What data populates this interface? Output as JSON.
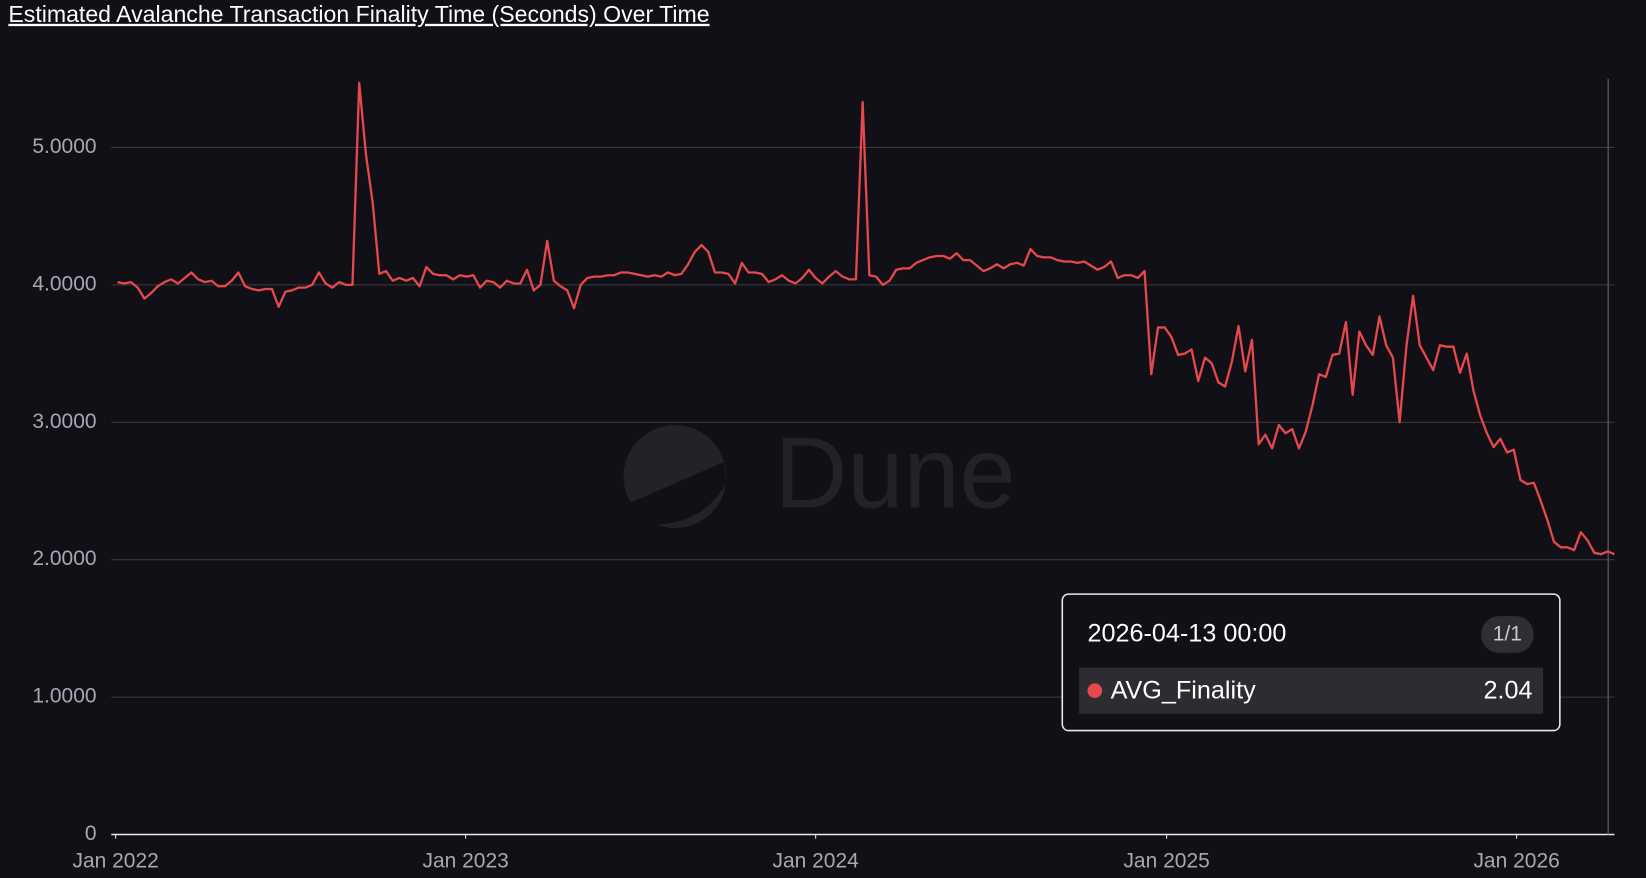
{
  "chart_data": {
    "type": "line",
    "title": "Estimated Avalanche Transaction Finality Time (Seconds) Over Time",
    "watermark": "Dune",
    "x": [
      "2022-01-03",
      "2022-01-10",
      "2022-01-17",
      "2022-01-24",
      "2022-01-31",
      "2022-02-07",
      "2022-02-14",
      "2022-02-21",
      "2022-02-28",
      "2022-03-07",
      "2022-03-14",
      "2022-03-21",
      "2022-03-28",
      "2022-04-04",
      "2022-04-11",
      "2022-04-18",
      "2022-04-25",
      "2022-05-02",
      "2022-05-09",
      "2022-05-16",
      "2022-05-23",
      "2022-05-30",
      "2022-06-06",
      "2022-06-13",
      "2022-06-20",
      "2022-06-27",
      "2022-07-04",
      "2022-07-11",
      "2022-07-18",
      "2022-07-25",
      "2022-08-01",
      "2022-08-08",
      "2022-08-15",
      "2022-08-22",
      "2022-08-29",
      "2022-09-05",
      "2022-09-12",
      "2022-09-19",
      "2022-09-26",
      "2022-10-03",
      "2022-10-10",
      "2022-10-17",
      "2022-10-24",
      "2022-10-31",
      "2022-11-07",
      "2022-11-14",
      "2022-11-21",
      "2022-11-28",
      "2022-12-05",
      "2022-12-12",
      "2022-12-19",
      "2022-12-26",
      "2023-01-02",
      "2023-01-09",
      "2023-01-16",
      "2023-01-23",
      "2023-01-30",
      "2023-02-06",
      "2023-02-13",
      "2023-02-20",
      "2023-02-27",
      "2023-03-06",
      "2023-03-13",
      "2023-03-20",
      "2023-03-27",
      "2023-04-03",
      "2023-04-10",
      "2023-04-17",
      "2023-04-24",
      "2023-05-01",
      "2023-05-08",
      "2023-05-15",
      "2023-05-22",
      "2023-05-29",
      "2023-06-05",
      "2023-06-12",
      "2023-06-19",
      "2023-06-26",
      "2023-07-03",
      "2023-07-10",
      "2023-07-17",
      "2023-07-24",
      "2023-07-31",
      "2023-08-07",
      "2023-08-14",
      "2023-08-21",
      "2023-08-28",
      "2023-09-04",
      "2023-09-11",
      "2023-09-18",
      "2023-09-25",
      "2023-10-02",
      "2023-10-09",
      "2023-10-16",
      "2023-10-23",
      "2023-10-30",
      "2023-11-06",
      "2023-11-13",
      "2023-11-20",
      "2023-11-27",
      "2023-12-04",
      "2023-12-11",
      "2023-12-18",
      "2023-12-25",
      "2024-01-01",
      "2024-01-08",
      "2024-01-15",
      "2024-01-22",
      "2024-01-29",
      "2024-02-05",
      "2024-02-12",
      "2024-02-19",
      "2024-02-26",
      "2024-03-04",
      "2024-03-11",
      "2024-03-18",
      "2024-03-25",
      "2024-04-01",
      "2024-04-08",
      "2024-04-15",
      "2024-04-22",
      "2024-04-29",
      "2024-05-06",
      "2024-05-13",
      "2024-05-20",
      "2024-05-27",
      "2024-06-03",
      "2024-06-10",
      "2024-06-17",
      "2024-06-24",
      "2024-07-01",
      "2024-07-08",
      "2024-07-15",
      "2024-07-22",
      "2024-07-29",
      "2024-08-05",
      "2024-08-12",
      "2024-08-19",
      "2024-08-26",
      "2024-09-02",
      "2024-09-09",
      "2024-09-16",
      "2024-09-23",
      "2024-09-30",
      "2024-10-07",
      "2024-10-14",
      "2024-10-21",
      "2024-10-28",
      "2024-11-04",
      "2024-11-11",
      "2024-11-18",
      "2024-11-25",
      "2024-12-02",
      "2024-12-09",
      "2024-12-16",
      "2024-12-23",
      "2024-12-30",
      "2025-01-06",
      "2025-01-13",
      "2025-01-20",
      "2025-01-27",
      "2025-02-03",
      "2025-02-10",
      "2025-02-17",
      "2025-02-24",
      "2025-03-03",
      "2025-03-10",
      "2025-03-17",
      "2025-03-24",
      "2025-03-31",
      "2025-04-07",
      "2025-04-14",
      "2025-04-21",
      "2025-04-28",
      "2025-05-05",
      "2025-05-12",
      "2025-05-19",
      "2025-05-26",
      "2025-06-02",
      "2025-06-09",
      "2025-06-16",
      "2025-06-23",
      "2025-06-30",
      "2025-07-07",
      "2025-07-14",
      "2025-07-21",
      "2025-07-28",
      "2025-08-04",
      "2025-08-11",
      "2025-08-18",
      "2025-08-25",
      "2025-09-01",
      "2025-09-08",
      "2025-09-15",
      "2025-09-22",
      "2025-09-29",
      "2025-10-06",
      "2025-10-13",
      "2025-10-20",
      "2025-10-27",
      "2025-11-03",
      "2025-11-10",
      "2025-11-17",
      "2025-11-24",
      "2025-12-01",
      "2025-12-08",
      "2025-12-15",
      "2025-12-22",
      "2025-12-29",
      "2026-01-05",
      "2026-01-12",
      "2026-01-19",
      "2026-01-26",
      "2026-02-02",
      "2026-02-09",
      "2026-02-16",
      "2026-02-23",
      "2026-03-02",
      "2026-03-09",
      "2026-03-16",
      "2026-03-23",
      "2026-03-30",
      "2026-04-06",
      "2026-04-13"
    ],
    "series": [
      {
        "name": "AVG_Finality",
        "color": "#e5484d",
        "values": [
          4.02,
          4.01,
          4.02,
          3.98,
          3.9,
          3.94,
          3.99,
          4.02,
          4.04,
          4.01,
          4.05,
          4.09,
          4.04,
          4.02,
          4.03,
          3.99,
          3.99,
          4.03,
          4.09,
          3.99,
          3.97,
          3.96,
          3.97,
          3.97,
          3.84,
          3.95,
          3.96,
          3.98,
          3.98,
          4.0,
          4.09,
          4.01,
          3.98,
          4.02,
          4.0,
          4.0,
          5.47,
          4.95,
          4.6,
          4.08,
          4.1,
          4.03,
          4.05,
          4.03,
          4.05,
          3.99,
          4.13,
          4.08,
          4.07,
          4.07,
          4.04,
          4.07,
          4.06,
          4.07,
          3.98,
          4.03,
          4.02,
          3.98,
          4.03,
          4.01,
          4.01,
          4.11,
          3.96,
          4.0,
          4.32,
          4.03,
          3.99,
          3.96,
          3.83,
          4.0,
          4.05,
          4.06,
          4.06,
          4.07,
          4.07,
          4.09,
          4.09,
          4.08,
          4.07,
          4.06,
          4.07,
          4.06,
          4.09,
          4.07,
          4.08,
          4.15,
          4.24,
          4.29,
          4.24,
          4.09,
          4.09,
          4.08,
          4.01,
          4.16,
          4.09,
          4.09,
          4.08,
          4.02,
          4.04,
          4.07,
          4.03,
          4.01,
          4.05,
          4.11,
          4.05,
          4.01,
          4.06,
          4.1,
          4.06,
          4.04,
          4.04,
          5.33,
          4.07,
          4.06,
          4.0,
          4.03,
          4.11,
          4.12,
          4.12,
          4.16,
          4.18,
          4.2,
          4.21,
          4.21,
          4.19,
          4.23,
          4.18,
          4.18,
          4.14,
          4.1,
          4.12,
          4.15,
          4.12,
          4.15,
          4.16,
          4.14,
          4.26,
          4.21,
          4.2,
          4.2,
          4.18,
          4.17,
          4.17,
          4.16,
          4.17,
          4.14,
          4.11,
          4.13,
          4.17,
          4.05,
          4.07,
          4.07,
          4.05,
          4.1,
          3.35,
          3.69,
          3.69,
          3.62,
          3.49,
          3.5,
          3.53,
          3.3,
          3.47,
          3.43,
          3.29,
          3.26,
          3.44,
          3.7,
          3.37,
          3.6,
          2.84,
          2.91,
          2.81,
          2.98,
          2.92,
          2.95,
          2.81,
          2.93,
          3.12,
          3.35,
          3.33,
          3.49,
          3.5,
          3.73,
          3.2,
          3.66,
          3.56,
          3.49,
          3.77,
          3.56,
          3.47,
          3.0,
          3.55,
          3.92,
          3.56,
          3.47,
          3.38,
          3.56,
          3.55,
          3.55,
          3.36,
          3.5,
          3.23,
          3.05,
          2.92,
          2.82,
          2.88,
          2.78,
          2.8,
          2.58,
          2.55,
          2.56,
          2.43,
          2.29,
          2.13,
          2.09,
          2.09,
          2.07,
          2.2,
          2.14,
          2.05,
          2.04,
          2.06,
          2.04
        ]
      }
    ],
    "xlim": [
      "2022-01-03",
      "2026-04-13"
    ],
    "xticks": [
      {
        "value": "2022-01-01",
        "label": "Jan 2022"
      },
      {
        "value": "2023-01-01",
        "label": "Jan 2023"
      },
      {
        "value": "2024-01-01",
        "label": "Jan 2024"
      },
      {
        "value": "2025-01-01",
        "label": "Jan 2025"
      },
      {
        "value": "2026-01-01",
        "label": "Jan 2026"
      }
    ],
    "ylim": [
      0,
      5.5
    ],
    "yticks": [
      0,
      {
        "value": 1,
        "label": "1.0000"
      },
      {
        "value": 2,
        "label": "2.0000"
      },
      {
        "value": 3,
        "label": "3.0000"
      },
      {
        "value": 4,
        "label": "4.0000"
      },
      {
        "value": 5,
        "label": "5.0000"
      }
    ],
    "grid": true,
    "tooltip": {
      "title": "2026-04-13 00:00",
      "counter": "1/1"
    }
  }
}
